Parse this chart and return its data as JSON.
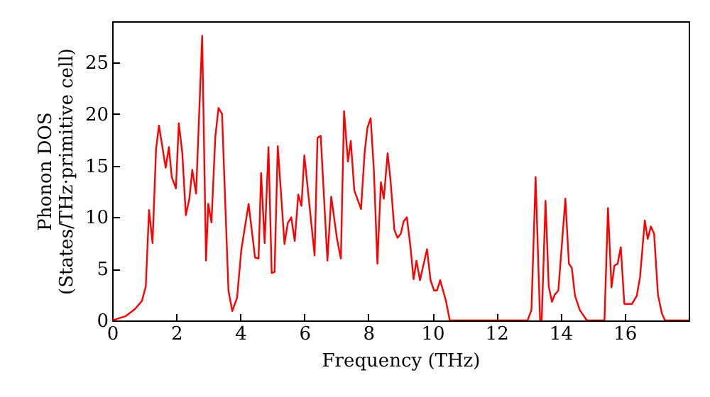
{
  "chart_data": {
    "type": "line",
    "xlabel": "Frequency (THz)",
    "ylabel": "Phonon DOS\n(States/THz·primitive cell)",
    "xlim": [
      0,
      18
    ],
    "ylim": [
      0,
      29
    ],
    "xticks": [
      0,
      2,
      4,
      6,
      8,
      10,
      12,
      14,
      16
    ],
    "yticks": [
      0,
      5,
      10,
      15,
      20,
      25
    ],
    "grid": false,
    "series": [
      {
        "color": "#ff0000",
        "x": [
          0,
          0.41,
          0.71,
          0.93,
          1.05,
          1.15,
          1.26,
          1.37,
          1.46,
          1.67,
          1.77,
          1.86,
          1.99,
          2.08,
          2.19,
          2.3,
          2.41,
          2.5,
          2.62,
          2.81,
          2.93,
          3.0,
          3.1,
          3.22,
          3.32,
          3.43,
          3.63,
          3.75,
          3.9,
          4.03,
          4.26,
          4.46,
          4.57,
          4.65,
          4.76,
          4.88,
          4.98,
          5.07,
          5.17,
          5.38,
          5.48,
          5.59,
          5.7,
          5.81,
          5.91,
          6.0,
          6.32,
          6.41,
          6.51,
          6.72,
          6.84,
          7.02,
          7.14,
          7.24,
          7.36,
          7.45,
          7.56,
          7.77,
          7.88,
          7.97,
          8.07,
          8.17,
          8.28,
          8.39,
          8.48,
          8.6,
          8.69,
          8.81,
          8.91,
          9.01,
          9.1,
          9.2,
          9.31,
          9.41,
          9.5,
          9.61,
          9.83,
          9.94,
          10.05,
          10.14,
          10.24,
          10.42,
          10.54,
          12.97,
          13.09,
          13.22,
          13.36,
          13.41,
          13.53,
          13.63,
          13.73,
          13.82,
          13.93,
          14.15,
          14.26,
          14.35,
          14.45,
          14.6,
          14.82,
          15.37,
          15.48,
          15.59,
          15.68,
          15.78,
          15.88,
          15.99,
          16.23,
          16.38,
          16.48,
          16.63,
          16.72,
          16.82,
          16.92,
          17.04,
          17.16,
          17.26,
          18.0
        ],
        "values": [
          0,
          0.4,
          1.1,
          1.9,
          3.3,
          10.7,
          7.5,
          16.6,
          18.9,
          14.8,
          16.8,
          13.9,
          12.8,
          19.1,
          16.2,
          10.2,
          11.8,
          14.6,
          12.3,
          27.6,
          5.8,
          11.3,
          9.5,
          17.8,
          20.6,
          20.0,
          2.9,
          0.9,
          2.2,
          6.8,
          11.3,
          6.1,
          6.0,
          14.3,
          7.5,
          16.8,
          4.6,
          4.7,
          16.9,
          7.4,
          9.4,
          10.0,
          7.7,
          12.2,
          11.1,
          16.0,
          6.3,
          17.7,
          17.9,
          5.8,
          12.0,
          7.9,
          6.0,
          20.3,
          15.4,
          17.4,
          12.6,
          10.8,
          16.2,
          18.7,
          19.6,
          14.6,
          5.5,
          13.4,
          11.8,
          16.2,
          13.6,
          8.8,
          8.0,
          8.4,
          9.6,
          10.0,
          7.2,
          4.0,
          5.8,
          3.9,
          6.9,
          3.9,
          2.9,
          2.9,
          3.9,
          1.9,
          0,
          0,
          1.0,
          13.9,
          0,
          0,
          11.6,
          3.3,
          1.8,
          2.5,
          2.9,
          11.8,
          5.5,
          5.1,
          2.4,
          1.0,
          0,
          0,
          10.9,
          3.2,
          5.3,
          5.5,
          7.1,
          1.6,
          1.6,
          2.4,
          4.2,
          9.7,
          7.9,
          9.1,
          8.4,
          2.5,
          0.7,
          0,
          0
        ]
      }
    ]
  }
}
